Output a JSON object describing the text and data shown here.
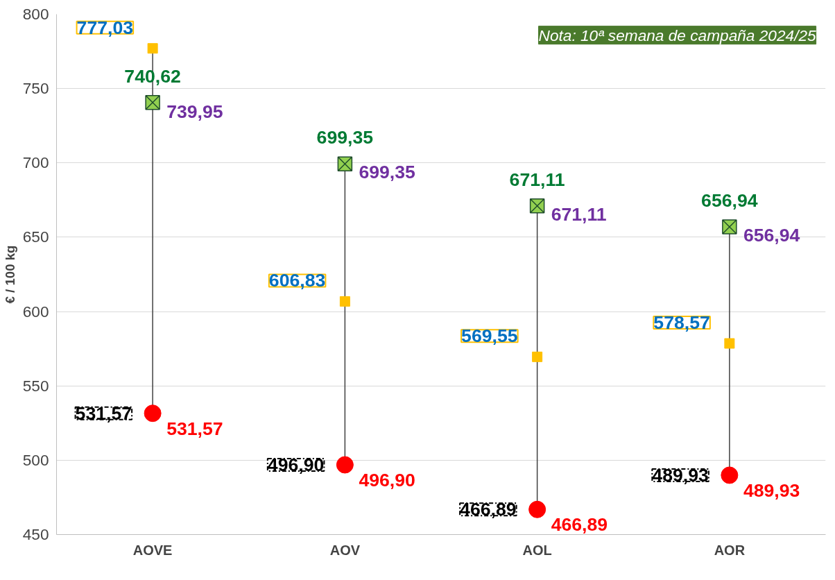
{
  "chart_data": {
    "type": "scatter",
    "categories": [
      "AOVE",
      "AOV",
      "AOL",
      "AOR"
    ],
    "ylabel": "€ / 100 kg",
    "ylim": [
      450,
      800
    ],
    "yticks": [
      450,
      500,
      550,
      600,
      650,
      700,
      750,
      800
    ],
    "grid": "y",
    "annotations": [
      "Nota: 10ª semana de campaña 2024/25",
      {
        "text": "739,95",
        "x": "AOVE",
        "y": 739.95
      },
      {
        "text": "699,35",
        "x": "AOV",
        "y": 699.35
      },
      {
        "text": "671,11",
        "x": "AOL",
        "y": 671.11
      },
      {
        "text": "656,94",
        "x": "AOR",
        "y": 656.94
      },
      {
        "text": "531,57",
        "x": "AOVE",
        "y": 531.57
      },
      {
        "text": "496,90",
        "x": "AOV",
        "y": 496.9
      },
      {
        "text": "466,89",
        "x": "AOL",
        "y": 466.89
      },
      {
        "text": "489,93",
        "x": "AOR",
        "y": 489.93
      }
    ],
    "series": [
      {
        "marker": "square",
        "color": "#ffc000",
        "values": [
          777.03,
          606.83,
          569.55,
          578.57
        ],
        "value_labels": [
          "777,03",
          "606,83",
          "569,55",
          "578,57"
        ]
      },
      {
        "marker": "cross",
        "color": "#92d050",
        "values": [
          740.62,
          699.35,
          671.11,
          656.94
        ],
        "value_labels": [
          "740,62",
          "699,35",
          "671,11",
          "656,94"
        ]
      },
      {
        "marker": "circle",
        "color": "#ff0000",
        "values": [
          531.57,
          496.9,
          466.89,
          489.93
        ],
        "value_labels": [
          "531,57",
          "496,90",
          "466,89",
          "489,93"
        ]
      }
    ]
  }
}
